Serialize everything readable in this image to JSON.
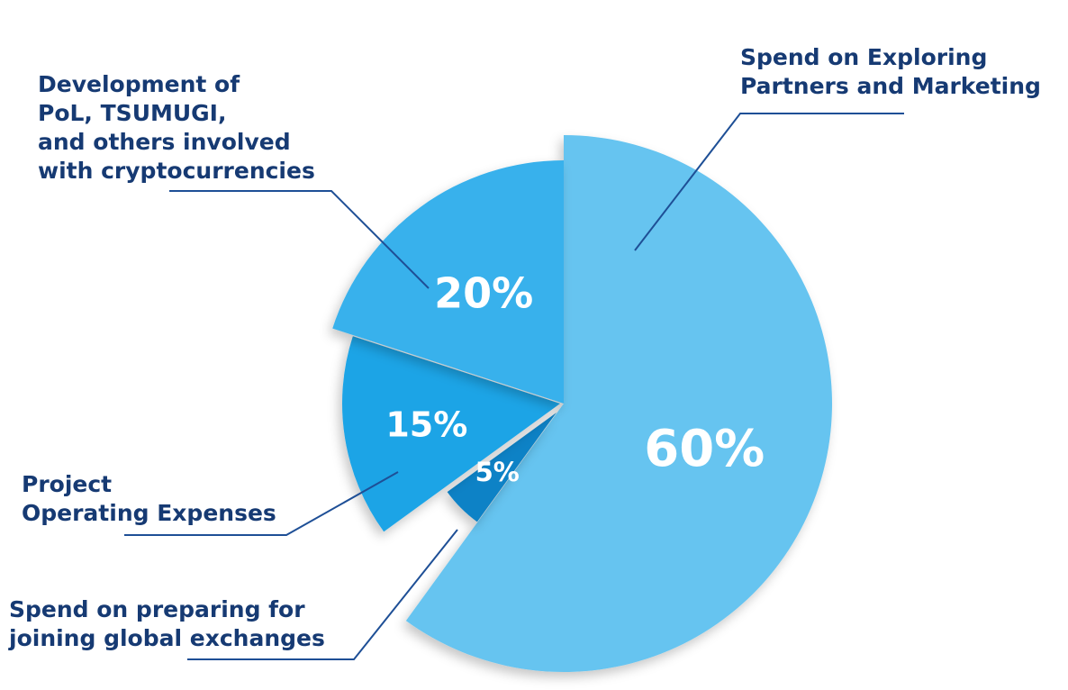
{
  "chart_data": {
    "type": "pie",
    "title": "",
    "slices": [
      {
        "label": "Spend on Exploring Partners and Marketing",
        "label_lines": [
          "Spend on Exploring",
          "Partners and Marketing"
        ],
        "value": 60,
        "value_label": "60%",
        "color": "#66c4f0"
      },
      {
        "label": "Spend on preparing for joining global exchanges",
        "label_lines": [
          "Spend on preparing for",
          "joining global exchanges"
        ],
        "value": 5,
        "value_label": "5%",
        "color": "#0f82c6"
      },
      {
        "label": "Project Operating Expenses",
        "label_lines": [
          "Project",
          "Operating Expenses"
        ],
        "value": 15,
        "value_label": "15%",
        "color": "#1ba4e6"
      },
      {
        "label": "Development of PoL, TSUMUGI, and others involved with cryptocurrencies",
        "label_lines": [
          "Development of",
          "PoL, TSUMUGI,",
          "and others involved",
          "with cryptocurrencies"
        ],
        "value": 20,
        "value_label": "20%",
        "color": "#38b1ec"
      }
    ],
    "label_color": "#163a73",
    "leader_color": "#1e4f96",
    "value_label_color": "#ffffff",
    "legend": "callouts"
  }
}
